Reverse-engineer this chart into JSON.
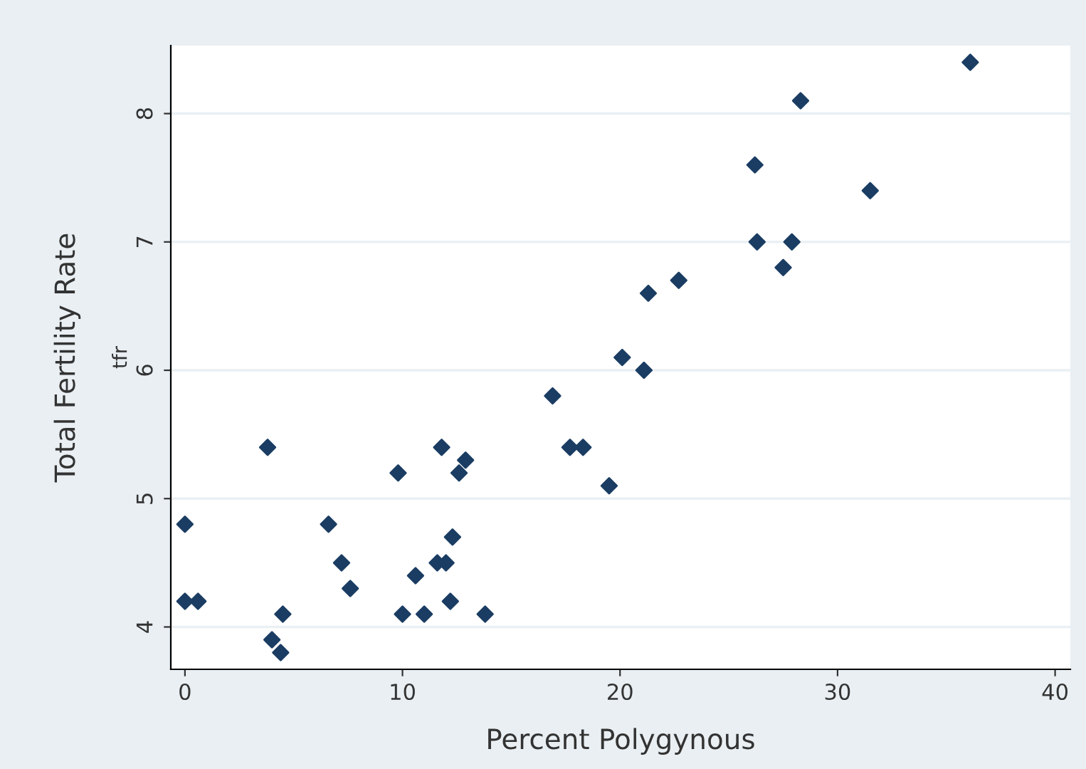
{
  "chart_data": {
    "type": "scatter",
    "xlabel": "Percent Polygynous",
    "ylabel": "Total Fertility Rate",
    "annotations": [
      "tfr"
    ],
    "x": [
      0,
      0,
      0.6,
      3.8,
      4,
      4.4,
      4.5,
      6.6,
      7.2,
      7.6,
      9.8,
      10,
      10.6,
      11,
      11.6,
      11.8,
      12,
      12.2,
      12.3,
      12.6,
      12.9,
      13.8,
      16.9,
      17.7,
      18.3,
      19.5,
      20.1,
      21.1,
      21.3,
      22.7,
      26.2,
      26.3,
      27.5,
      27.9,
      28.3,
      31.5,
      36.1
    ],
    "series": [
      {
        "color": "#1b3d63",
        "values": [
          4.8,
          4.2,
          4.2,
          5.4,
          3.9,
          3.8,
          4.1,
          4.8,
          4.5,
          4.3,
          5.2,
          4.1,
          4.4,
          4.1,
          4.5,
          5.4,
          4.5,
          4.2,
          4.7,
          5.2,
          5.3,
          4.1,
          5.8,
          5.4,
          5.4,
          5.1,
          6.1,
          6.0,
          6.6,
          6.7,
          7.6,
          7.0,
          6.8,
          7.0,
          8.1,
          7.4,
          8.4
        ]
      }
    ],
    "xlim": [
      -0.65,
      40.7
    ],
    "ylim": [
      3.67,
      8.53
    ],
    "xticks": [
      0,
      10,
      20,
      30,
      40
    ],
    "yticks": [
      4,
      5,
      6,
      7,
      8
    ],
    "grid": "y",
    "marker": "diamond",
    "legend": false
  }
}
